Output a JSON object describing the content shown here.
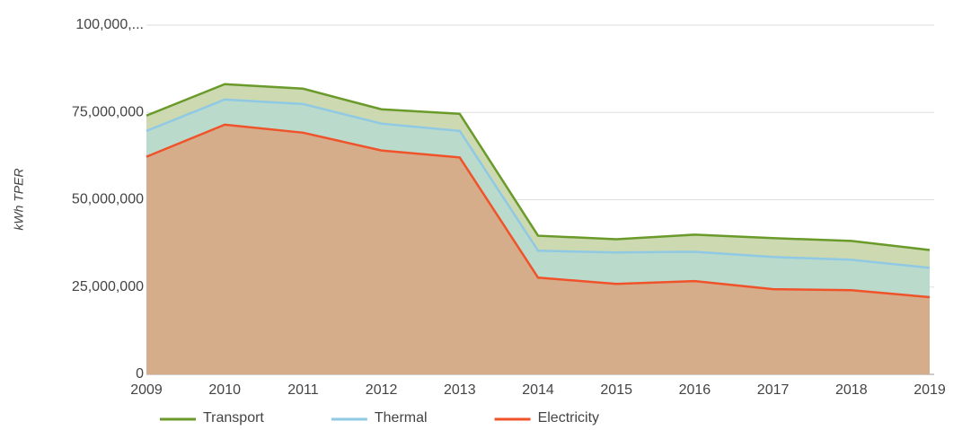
{
  "chart_data": {
    "type": "stacked_area",
    "y_label": "kWh TPER",
    "categories": [
      "2009",
      "2010",
      "2011",
      "2012",
      "2013",
      "2014",
      "2015",
      "2016",
      "2017",
      "2018",
      "2019"
    ],
    "series": [
      {
        "name": "Electricity",
        "color": "#f0522a",
        "fill": "#d9a784",
        "values": [
          62300000,
          71500000,
          69200000,
          64100000,
          62100000,
          27700000,
          25900000,
          26700000,
          24400000,
          24100000,
          22100000
        ]
      },
      {
        "name": "Thermal",
        "color": "#8fc9e4",
        "fill": "#b8d9cf",
        "values": [
          7400000,
          7200000,
          8200000,
          7700000,
          7600000,
          7700000,
          9000000,
          8400000,
          9200000,
          8700000,
          8400000
        ]
      },
      {
        "name": "Transport",
        "color": "#6a9a2a",
        "fill": "#c6d5a9",
        "values": [
          4400000,
          4400000,
          4400000,
          4100000,
          4900000,
          4300000,
          3800000,
          4900000,
          5400000,
          5400000,
          5100000
        ]
      }
    ],
    "ylim": [
      0,
      100000000
    ],
    "yticks": [
      0,
      {
        "value": 25000000,
        "label": "25,000,000"
      },
      {
        "value": 50000000,
        "label": "50,000,000"
      },
      {
        "value": 75000000,
        "label": "75,000,000"
      },
      {
        "value": 100000000,
        "label": "100,000,..."
      }
    ],
    "grid": true,
    "legend": "bottom"
  }
}
